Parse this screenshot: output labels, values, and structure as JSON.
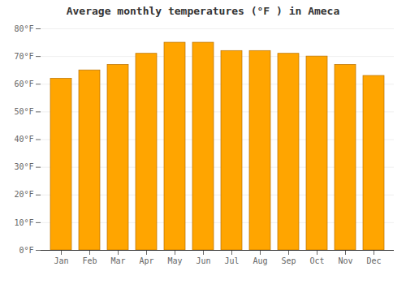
{
  "chart_data": {
    "type": "bar",
    "title": "Average monthly temperatures (°F ) in Ameca",
    "categories": [
      "Jan",
      "Feb",
      "Mar",
      "Apr",
      "May",
      "Jun",
      "Jul",
      "Aug",
      "Sep",
      "Oct",
      "Nov",
      "Dec"
    ],
    "values": [
      62,
      65,
      67,
      71,
      75,
      75,
      72,
      72,
      71,
      70,
      67,
      63
    ],
    "color": "#FFA500",
    "ylim": [
      0,
      80
    ],
    "yticks": [
      {
        "value": 0,
        "label": "0°F"
      },
      {
        "value": 10,
        "label": "10°F"
      },
      {
        "value": 20,
        "label": "20°F"
      },
      {
        "value": 30,
        "label": "30°F"
      },
      {
        "value": 40,
        "label": "40°F"
      },
      {
        "value": 50,
        "label": "50°F"
      },
      {
        "value": 60,
        "label": "60°F"
      },
      {
        "value": 70,
        "label": "70°F"
      },
      {
        "value": 80,
        "label": "80°F"
      }
    ],
    "grid": true
  }
}
